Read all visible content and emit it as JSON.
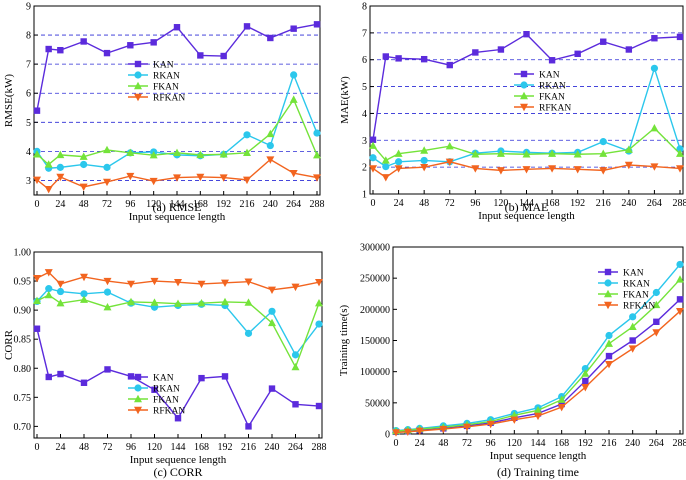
{
  "colors": {
    "KAN": "#5b2bdc",
    "RKAN": "#2bc7ec",
    "FKAN": "#74e33a",
    "RFKAN": "#f2641f",
    "grid": "#2b2bd6"
  },
  "chart_data": [
    {
      "type": "line",
      "title": "",
      "caption": "(a) RMSE",
      "xlabel": "Input sequence length",
      "ylabel": "RMSE(kW)",
      "x": [
        0,
        12,
        24,
        48,
        72,
        96,
        120,
        144,
        168,
        192,
        216,
        240,
        264,
        288
      ],
      "xticks": [
        "0",
        "24",
        "48",
        "72",
        "96",
        "120",
        "144",
        "168",
        "192",
        "216",
        "240",
        "264",
        "288"
      ],
      "xlim": [
        0,
        288
      ],
      "ylim": [
        2.5,
        9
      ],
      "yticks": [
        "3",
        "4",
        "5",
        "6",
        "7",
        "8",
        "9"
      ],
      "grid": true,
      "legend": "center-left",
      "series": [
        {
          "name": "KAN",
          "marker": "square",
          "values": [
            5.4,
            7.52,
            7.48,
            7.78,
            7.38,
            7.65,
            7.75,
            8.27,
            7.3,
            7.28,
            8.3,
            7.9,
            8.22,
            8.37
          ]
        },
        {
          "name": "RKAN",
          "marker": "circle",
          "values": [
            4.0,
            3.42,
            3.45,
            3.55,
            3.45,
            3.95,
            3.98,
            3.88,
            3.85,
            3.9,
            4.57,
            4.2,
            6.63,
            4.63
          ]
        },
        {
          "name": "FKAN",
          "marker": "triangle-up",
          "values": [
            3.9,
            3.55,
            3.88,
            3.82,
            4.05,
            3.95,
            3.87,
            3.95,
            3.88,
            3.9,
            3.95,
            4.6,
            5.78,
            3.87
          ]
        },
        {
          "name": "RFKAN",
          "marker": "triangle-down",
          "values": [
            3.02,
            2.7,
            3.12,
            2.78,
            2.95,
            3.15,
            2.98,
            3.1,
            3.12,
            3.1,
            3.02,
            3.72,
            3.25,
            3.1
          ]
        }
      ]
    },
    {
      "type": "line",
      "title": "",
      "caption": "(b) MAE",
      "xlabel": "Input sequence length",
      "ylabel": "MAE(kW)",
      "x": [
        0,
        12,
        24,
        48,
        72,
        96,
        120,
        144,
        168,
        192,
        216,
        240,
        264,
        288
      ],
      "xticks": [
        "0",
        "24",
        "48",
        "72",
        "96",
        "120",
        "144",
        "168",
        "192",
        "216",
        "240",
        "264",
        "288"
      ],
      "xlim": [
        0,
        288
      ],
      "ylim": [
        1,
        8
      ],
      "yticks": [
        "1",
        "2",
        "3",
        "4",
        "5",
        "6",
        "7",
        "8"
      ],
      "grid": true,
      "legend": "center-left",
      "series": [
        {
          "name": "KAN",
          "marker": "square",
          "values": [
            3.02,
            6.12,
            6.05,
            6.02,
            5.8,
            6.27,
            6.38,
            6.95,
            5.98,
            6.22,
            6.67,
            6.38,
            6.8,
            6.85
          ]
        },
        {
          "name": "RKAN",
          "marker": "circle",
          "values": [
            2.35,
            2.02,
            2.2,
            2.25,
            2.2,
            2.52,
            2.6,
            2.55,
            2.52,
            2.55,
            2.95,
            2.6,
            5.68,
            2.68
          ]
        },
        {
          "name": "FKAN",
          "marker": "triangle-up",
          "values": [
            2.8,
            2.25,
            2.5,
            2.62,
            2.78,
            2.48,
            2.5,
            2.48,
            2.5,
            2.48,
            2.5,
            2.65,
            3.45,
            2.5
          ]
        },
        {
          "name": "RFKAN",
          "marker": "triangle-down",
          "values": [
            1.95,
            1.62,
            1.95,
            2.0,
            2.2,
            1.95,
            1.88,
            1.92,
            1.95,
            1.92,
            1.88,
            2.08,
            2.02,
            1.95
          ]
        }
      ]
    },
    {
      "type": "line",
      "title": "",
      "caption": "(c) CORR",
      "xlabel": "Input sequence length",
      "ylabel": "CORR",
      "x": [
        0,
        12,
        24,
        48,
        72,
        96,
        120,
        144,
        168,
        192,
        216,
        240,
        264,
        288
      ],
      "xticks": [
        "0",
        "24",
        "48",
        "72",
        "96",
        "120",
        "144",
        "168",
        "192",
        "216",
        "240",
        "264",
        "288"
      ],
      "xlim": [
        0,
        288
      ],
      "ylim": [
        0.68,
        1.0
      ],
      "yticks": [
        "0.70",
        "0.75",
        "0.80",
        "0.85",
        "0.90",
        "0.95",
        "1.00"
      ],
      "grid": false,
      "legend": "bottom-left",
      "series": [
        {
          "name": "KAN",
          "marker": "square",
          "values": [
            0.868,
            0.785,
            0.79,
            0.775,
            0.798,
            0.786,
            0.763,
            0.714,
            0.783,
            0.786,
            0.7,
            0.765,
            0.738,
            0.735
          ]
        },
        {
          "name": "RKAN",
          "marker": "circle",
          "values": [
            0.915,
            0.937,
            0.932,
            0.928,
            0.931,
            0.912,
            0.905,
            0.908,
            0.91,
            0.908,
            0.86,
            0.898,
            0.823,
            0.876
          ]
        },
        {
          "name": "FKAN",
          "marker": "triangle-up",
          "values": [
            0.916,
            0.926,
            0.912,
            0.918,
            0.905,
            0.914,
            0.913,
            0.911,
            0.912,
            0.914,
            0.913,
            0.878,
            0.802,
            0.912
          ]
        },
        {
          "name": "RFKAN",
          "marker": "triangle-down",
          "values": [
            0.955,
            0.965,
            0.945,
            0.957,
            0.95,
            0.945,
            0.95,
            0.948,
            0.945,
            0.947,
            0.949,
            0.935,
            0.94,
            0.948
          ]
        }
      ]
    },
    {
      "type": "line",
      "title": "",
      "caption": "(d) Training time",
      "xlabel": "Input sequence length",
      "ylabel": "Training time(s)",
      "x": [
        0,
        12,
        24,
        48,
        72,
        96,
        120,
        144,
        168,
        192,
        216,
        240,
        264,
        288
      ],
      "xticks": [
        "0",
        "24",
        "48",
        "72",
        "96",
        "120",
        "144",
        "168",
        "192",
        "216",
        "240",
        "264",
        "288"
      ],
      "xlim": [
        0,
        288
      ],
      "ylim": [
        0,
        300000
      ],
      "yticks": [
        "0",
        "50000",
        "100000",
        "150000",
        "200000",
        "250000",
        "300000"
      ],
      "grid": false,
      "legend": "top-right",
      "series": [
        {
          "name": "KAN",
          "marker": "square",
          "values": [
            3500,
            4500,
            6000,
            9000,
            13000,
            18000,
            26000,
            33000,
            48000,
            85000,
            125000,
            150000,
            180000,
            216000
          ]
        },
        {
          "name": "RKAN",
          "marker": "circle",
          "values": [
            5500,
            7000,
            9000,
            13000,
            17000,
            23000,
            33000,
            42000,
            60000,
            105000,
            158000,
            188000,
            227000,
            272000
          ]
        },
        {
          "name": "FKAN",
          "marker": "triangle-up",
          "values": [
            4500,
            6000,
            8000,
            11000,
            15000,
            20000,
            30000,
            38000,
            55000,
            97000,
            145000,
            172000,
            207000,
            248000
          ]
        },
        {
          "name": "RFKAN",
          "marker": "triangle-down",
          "values": [
            2500,
            3500,
            5000,
            8000,
            11500,
            16000,
            23000,
            29000,
            43000,
            75000,
            112000,
            137000,
            163000,
            197000
          ]
        }
      ]
    }
  ]
}
